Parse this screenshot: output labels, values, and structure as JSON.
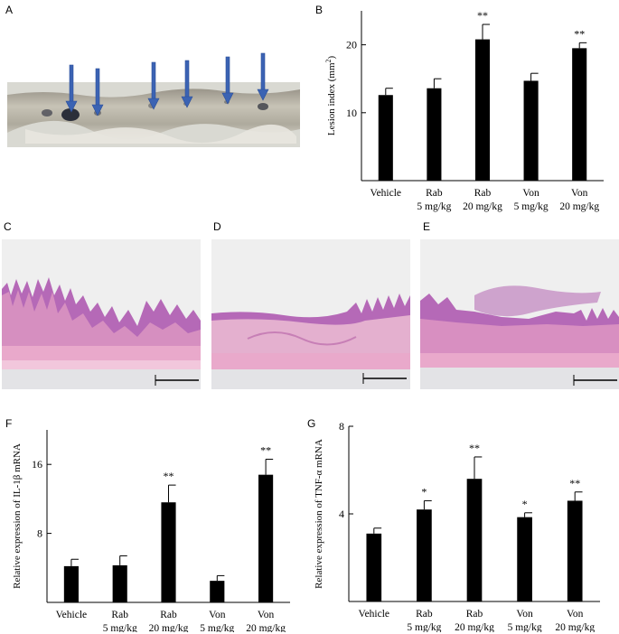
{
  "panels": {
    "a": "A",
    "b": "B",
    "c": "C",
    "d": "D",
    "e": "E",
    "f": "F",
    "g": "G"
  },
  "colors": {
    "bar": "#000000",
    "arrow": "#3b63b3",
    "tissue_light": "#b7b3a4",
    "tissue_dark": "#3b3838",
    "he_pink": "#e7a8c6",
    "he_purple": "#9e5aa8",
    "he_bg": "#eeeeee"
  },
  "chart_data": [
    {
      "id": "B",
      "type": "bar",
      "ylabel": "Lesion index (mm²)",
      "categories": [
        "Vehicle",
        "Rab\n5 mg/kg",
        "Rab\n20 mg/kg",
        "Von\n5 mg/kg",
        "Von\n20 mg/kg"
      ],
      "values": [
        12.6,
        13.6,
        20.8,
        14.7,
        19.5
      ],
      "errors": [
        1.0,
        1.4,
        2.2,
        1.1,
        0.8
      ],
      "significance": [
        "",
        "",
        "**",
        "",
        "**"
      ],
      "ylim": [
        0,
        25
      ],
      "yticks": [
        10,
        20
      ]
    },
    {
      "id": "F",
      "type": "bar",
      "ylabel": "Relative expression of IL-1β mRNA",
      "categories": [
        "Vehicle",
        "Rab\n5 mg/kg",
        "Rab\n20 mg/kg",
        "Von\n5 mg/kg",
        "Von\n20 mg/kg"
      ],
      "values": [
        4.2,
        4.3,
        11.6,
        2.5,
        14.8
      ],
      "errors": [
        0.8,
        1.1,
        2.0,
        0.6,
        1.8
      ],
      "significance": [
        "",
        "",
        "**",
        "",
        "**"
      ],
      "ylim": [
        0,
        20
      ],
      "yticks": [
        8,
        16
      ]
    },
    {
      "id": "G",
      "type": "bar",
      "ylabel": "Relative expression of TNF-α mRNA",
      "categories": [
        "Vehicle",
        "Rab\n5 mg/kg",
        "Rab\n20 mg/kg",
        "Von\n5 mg/kg",
        "Von\n20 mg/kg"
      ],
      "values": [
        3.1,
        4.2,
        5.6,
        3.85,
        4.6
      ],
      "errors": [
        0.25,
        0.4,
        1.0,
        0.2,
        0.4
      ],
      "significance": [
        "",
        "*",
        "**",
        "*",
        "**"
      ],
      "ylim": [
        0,
        8
      ],
      "yticks": [
        4,
        8
      ]
    }
  ]
}
